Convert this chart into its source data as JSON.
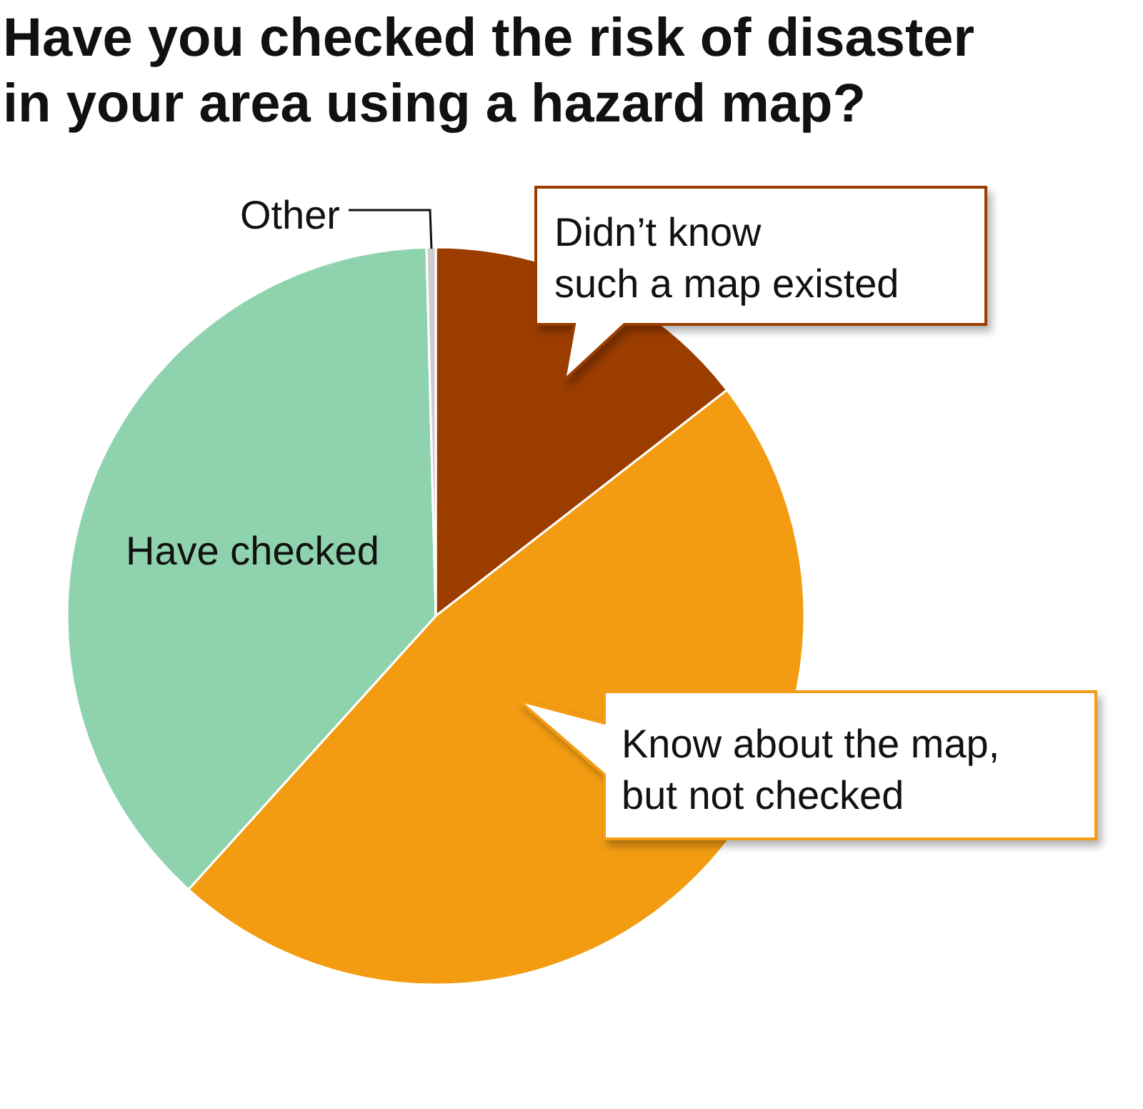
{
  "chart_data": {
    "type": "pie",
    "title": "Have you checked the risk of disaster in your area using a hazard map?",
    "categories": [
      "Didn’t know such a map existed",
      "Know about the map, but not checked",
      "Have checked",
      "Other"
    ],
    "values": [
      14.5,
      47.2,
      37.9,
      0.4
    ],
    "colors": [
      "#9c3d00",
      "#f39c12",
      "#8fd3ae",
      "#cccccc"
    ]
  }
}
